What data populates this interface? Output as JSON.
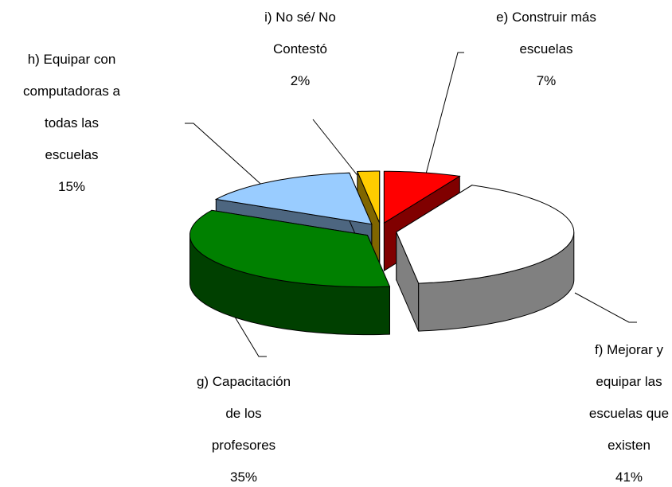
{
  "chart_data": {
    "type": "pie3d",
    "categories": [
      "e) Construir más\nescuelas",
      "f) Mejorar y\nequipar las\nescuelas que\nexisten",
      "g) Capacitación\nde los\nprofesores",
      "h) Equipar con\ncomputadoras a\ntodas las\nescuelas",
      "i) No sé/ No\nContestó"
    ],
    "values": [
      7,
      41,
      35,
      15,
      2
    ],
    "value_labels": [
      "7%",
      "41%",
      "35%",
      "15%",
      "2%"
    ],
    "colors": [
      "#ff0000",
      "#ffffff",
      "#008000",
      "#99ccff",
      "#ffcc00"
    ]
  }
}
